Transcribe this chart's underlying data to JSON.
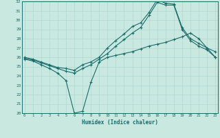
{
  "title": "",
  "xlabel": "Humidex (Indice chaleur)",
  "ylabel": "",
  "bg_color": "#c8e8e0",
  "line_color": "#1a6b6b",
  "grid_color": "#b0d8d0",
  "xmin": 0,
  "xmax": 23,
  "ymin": 20,
  "ymax": 32,
  "xticks": [
    0,
    1,
    2,
    3,
    4,
    5,
    6,
    7,
    8,
    9,
    10,
    11,
    12,
    13,
    14,
    15,
    16,
    17,
    18,
    19,
    20,
    21,
    22,
    23
  ],
  "yticks": [
    20,
    21,
    22,
    23,
    24,
    25,
    26,
    27,
    28,
    29,
    30,
    31,
    32
  ],
  "line1_x": [
    0,
    1,
    2,
    3,
    4,
    5,
    6,
    7,
    8,
    9,
    10,
    11,
    12,
    13,
    14,
    15,
    16,
    17,
    18,
    19,
    20,
    21,
    22,
    23
  ],
  "line1_y": [
    26.0,
    25.8,
    25.5,
    25.2,
    24.9,
    24.8,
    24.6,
    25.2,
    25.5,
    26.0,
    27.0,
    27.8,
    28.5,
    29.3,
    29.7,
    30.8,
    32.2,
    31.8,
    31.7,
    29.2,
    28.0,
    27.5,
    27.0,
    26.6
  ],
  "line2_x": [
    0,
    1,
    2,
    3,
    4,
    5,
    6,
    7,
    8,
    9,
    10,
    11,
    12,
    13,
    14,
    15,
    16,
    17,
    18,
    19,
    20,
    21,
    22,
    23
  ],
  "line2_y": [
    25.9,
    25.7,
    25.4,
    25.1,
    24.8,
    24.5,
    24.3,
    24.8,
    25.2,
    25.8,
    26.4,
    27.2,
    27.9,
    28.6,
    29.2,
    30.5,
    31.9,
    31.6,
    31.6,
    29.0,
    27.8,
    27.2,
    26.8,
    26.0
  ],
  "line3_x": [
    0,
    1,
    2,
    3,
    4,
    5,
    6,
    7,
    8,
    9,
    10,
    11,
    12,
    13,
    14,
    15,
    16,
    17,
    18,
    19,
    20,
    21,
    22,
    23
  ],
  "line3_y": [
    25.8,
    25.6,
    25.2,
    24.8,
    24.3,
    23.5,
    20.0,
    20.2,
    23.3,
    25.5,
    26.0,
    26.2,
    26.4,
    26.6,
    26.9,
    27.2,
    27.4,
    27.6,
    27.9,
    28.2,
    28.6,
    28.0,
    27.0,
    26.0
  ]
}
